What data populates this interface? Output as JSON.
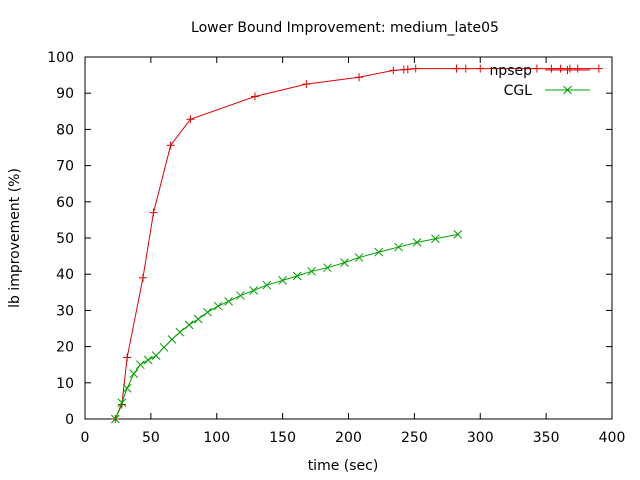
{
  "chart_data": {
    "type": "line",
    "title": "Lower Bound Improvement: medium_late05",
    "xlabel": "time (sec)",
    "ylabel": "lb improvement (%)",
    "xlim": [
      0,
      400
    ],
    "ylim": [
      0,
      100
    ],
    "xticks": [
      0,
      50,
      100,
      150,
      200,
      250,
      300,
      350,
      400
    ],
    "yticks": [
      0,
      10,
      20,
      30,
      40,
      50,
      60,
      70,
      80,
      90,
      100
    ],
    "grid": false,
    "legend": "top-right",
    "series": [
      {
        "name": "npsep",
        "color": "#e00000",
        "marker": "plus",
        "x": [
          23,
          28,
          32,
          44,
          52,
          65,
          80,
          129,
          168,
          208,
          234,
          242,
          245,
          251,
          282,
          289,
          300,
          343,
          354,
          361,
          368,
          374,
          390
        ],
        "y": [
          0,
          4,
          17,
          39,
          57,
          75.6,
          82.8,
          89.1,
          92.5,
          94.4,
          96.3,
          96.5,
          96.6,
          96.8,
          96.8,
          96.8,
          96.8,
          96.8,
          96.8,
          96.8,
          96.8,
          96.8,
          96.8
        ]
      },
      {
        "name": "CGL",
        "color": "#00a000",
        "marker": "x",
        "x": [
          23,
          28,
          32,
          37,
          42,
          48,
          54,
          60,
          66,
          72,
          79,
          86,
          93,
          101,
          109,
          118,
          128,
          138,
          150,
          161,
          172,
          184,
          197,
          208,
          223,
          238,
          252,
          266,
          283
        ],
        "y": [
          0,
          4.5,
          8.5,
          12.5,
          15,
          16.3,
          17.5,
          19.8,
          22,
          24,
          26,
          27.6,
          29.5,
          31.2,
          32.5,
          34.1,
          35.5,
          37,
          38.3,
          39.5,
          40.8,
          41.8,
          43.2,
          44.6,
          46.1,
          47.5,
          48.8,
          49.8,
          51
        ]
      }
    ]
  }
}
